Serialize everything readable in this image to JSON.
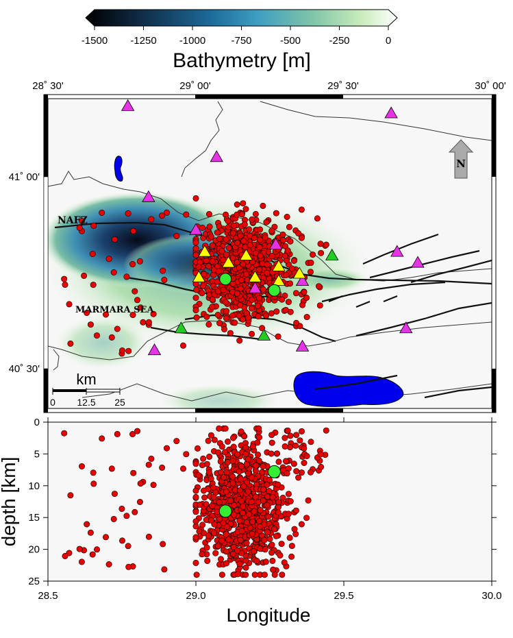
{
  "colorbar": {
    "title": "Bathymetry [m]",
    "ticks": [
      "-1500",
      "-1250",
      "-1000",
      "-750",
      "-500",
      "-250",
      "0"
    ],
    "colors": [
      "#000000",
      "#0d2b45",
      "#1e6f9e",
      "#4aa4c8",
      "#7fc7a6",
      "#bfe8b0",
      "#ffffff"
    ]
  },
  "map": {
    "lon_ticks": [
      "28˚ 30'",
      "29˚ 00'",
      "29˚ 30'",
      "30˚ 00'"
    ],
    "lat_ticks": [
      "41˚ 00'",
      "40˚ 30'"
    ],
    "fault_label": "NAFZ",
    "sea_label": "MARMARA SEA",
    "north_label": "N",
    "scale_title": "km",
    "scale_ticks": [
      "0",
      "12.5",
      "25"
    ],
    "colors": {
      "event": "#e60000",
      "station_magenta": "#e633e6",
      "station_yellow": "#ffff00",
      "station_green": "#22cc22",
      "main_shock": "#33ee33",
      "lake": "#0000ee"
    }
  },
  "depth_panel": {
    "ylabel": "depth [km]",
    "xlabel": "Longitude",
    "x_ticks": [
      "28.5",
      "29.0",
      "29.5",
      "30.0"
    ],
    "y_ticks": [
      "0",
      "5",
      "10",
      "15",
      "20",
      "25"
    ],
    "xlim": [
      28.5,
      30.0
    ],
    "ylim": [
      0,
      25
    ]
  },
  "chart_data": {
    "type": "scatter",
    "xlabel": "Longitude",
    "ylabel": "depth [km]",
    "xlim": [
      28.5,
      30.0
    ],
    "ylim": [
      25,
      0
    ],
    "main_shocks": [
      {
        "lon": 29.1,
        "lat": 40.755,
        "depth": 14.0
      },
      {
        "lon": 29.265,
        "lat": 40.724,
        "depth": 7.8
      }
    ],
    "stations_magenta": [
      [
        28.77,
        41.23
      ],
      [
        29.07,
        41.09
      ],
      [
        28.84,
        40.98
      ],
      [
        29.66,
        41.21
      ],
      [
        29.0,
        40.89
      ],
      [
        29.27,
        40.85
      ],
      [
        29.68,
        40.83
      ],
      [
        29.75,
        40.8
      ],
      [
        29.36,
        40.75
      ],
      [
        29.2,
        40.73
      ],
      [
        28.86,
        40.56
      ],
      [
        29.36,
        40.57
      ],
      [
        29.71,
        40.62
      ]
    ],
    "stations_yellow": [
      [
        29.03,
        40.83
      ],
      [
        29.17,
        40.82
      ],
      [
        29.11,
        40.8
      ],
      [
        29.28,
        40.79
      ],
      [
        29.35,
        40.77
      ],
      [
        29.2,
        40.76
      ],
      [
        29.01,
        40.76
      ],
      [
        29.28,
        40.75
      ]
    ],
    "stations_green": [
      [
        28.95,
        40.62
      ],
      [
        29.23,
        40.6
      ],
      [
        29.46,
        40.82
      ]
    ],
    "cluster": {
      "lon_range": [
        29.0,
        29.4
      ],
      "lat_range": [
        40.5,
        40.98
      ],
      "depth_range": [
        1,
        24
      ],
      "core_lon": 29.16,
      "core_lat": 40.78,
      "count": 820,
      "scattered_west": 45,
      "scattered_east": 30
    }
  }
}
